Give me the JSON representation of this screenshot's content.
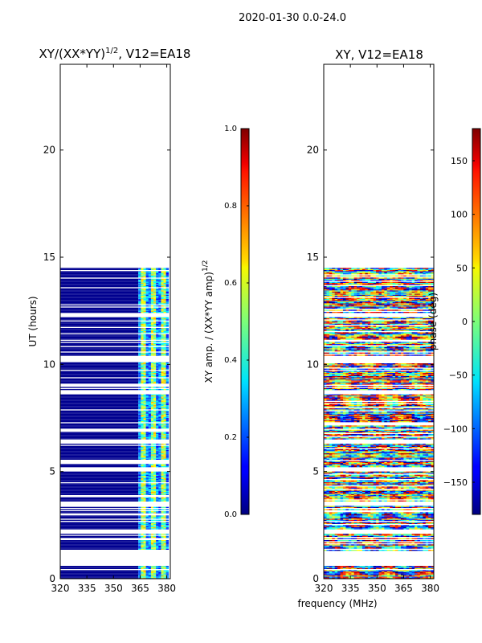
{
  "figure": {
    "suptitle": "2020-01-30 0.0-24.0",
    "shared_xlabel": "frequency (MHz)"
  },
  "chart_data": [
    {
      "type": "heatmap",
      "title_main": "XY/(XX*YY)",
      "title_sup": "1/2",
      "title_tail": ", V12=EA18",
      "xlabel": "frequency (MHz)",
      "ylabel": "UT (hours)",
      "xlim": [
        320,
        382
      ],
      "ylim": [
        0,
        24
      ],
      "xticks": [
        320,
        335,
        350,
        365,
        380
      ],
      "yticks": [
        0,
        5,
        10,
        15,
        20
      ],
      "colorbar": {
        "label_main": "XY amp. / (XX*YY amp)",
        "label_sup": "1/2",
        "range": [
          0.0,
          1.0
        ],
        "ticks": [
          "0.0",
          "0.2",
          "0.4",
          "0.6",
          "0.8",
          "1.0"
        ],
        "colormap": "jet"
      },
      "data_bands_hours": [
        [
          0.0,
          0.6
        ],
        [
          1.3,
          2.1
        ],
        [
          2.3,
          3.4
        ],
        [
          3.6,
          5.0
        ],
        [
          5.2,
          6.3
        ],
        [
          6.5,
          8.6
        ],
        [
          8.8,
          10.1
        ],
        [
          10.4,
          12.2
        ],
        [
          12.4,
          14.5
        ]
      ],
      "high_amplitude_freq_range_mhz": [
        364,
        381
      ]
    },
    {
      "type": "heatmap",
      "title": "XY, V12=EA18",
      "xlabel": "frequency (MHz)",
      "ylabel": "",
      "xlim": [
        320,
        382
      ],
      "ylim": [
        0,
        24
      ],
      "xticks": [
        320,
        335,
        350,
        365,
        380
      ],
      "yticks": [
        0,
        5,
        10,
        15,
        20
      ],
      "colorbar": {
        "label": "phase (deg)",
        "range": [
          -180,
          180
        ],
        "ticks": [
          "−150",
          "−100",
          "−50",
          "0",
          "50",
          "100",
          "150"
        ],
        "tick_values": [
          -150,
          -100,
          -50,
          0,
          50,
          100,
          150
        ],
        "colormap": "jet"
      },
      "data_bands_hours": [
        [
          0.0,
          0.6
        ],
        [
          1.3,
          2.1
        ],
        [
          2.3,
          3.4
        ],
        [
          3.6,
          5.0
        ],
        [
          5.2,
          6.3
        ],
        [
          6.5,
          8.6
        ],
        [
          8.8,
          10.1
        ],
        [
          10.4,
          12.2
        ],
        [
          12.4,
          14.5
        ]
      ]
    }
  ]
}
